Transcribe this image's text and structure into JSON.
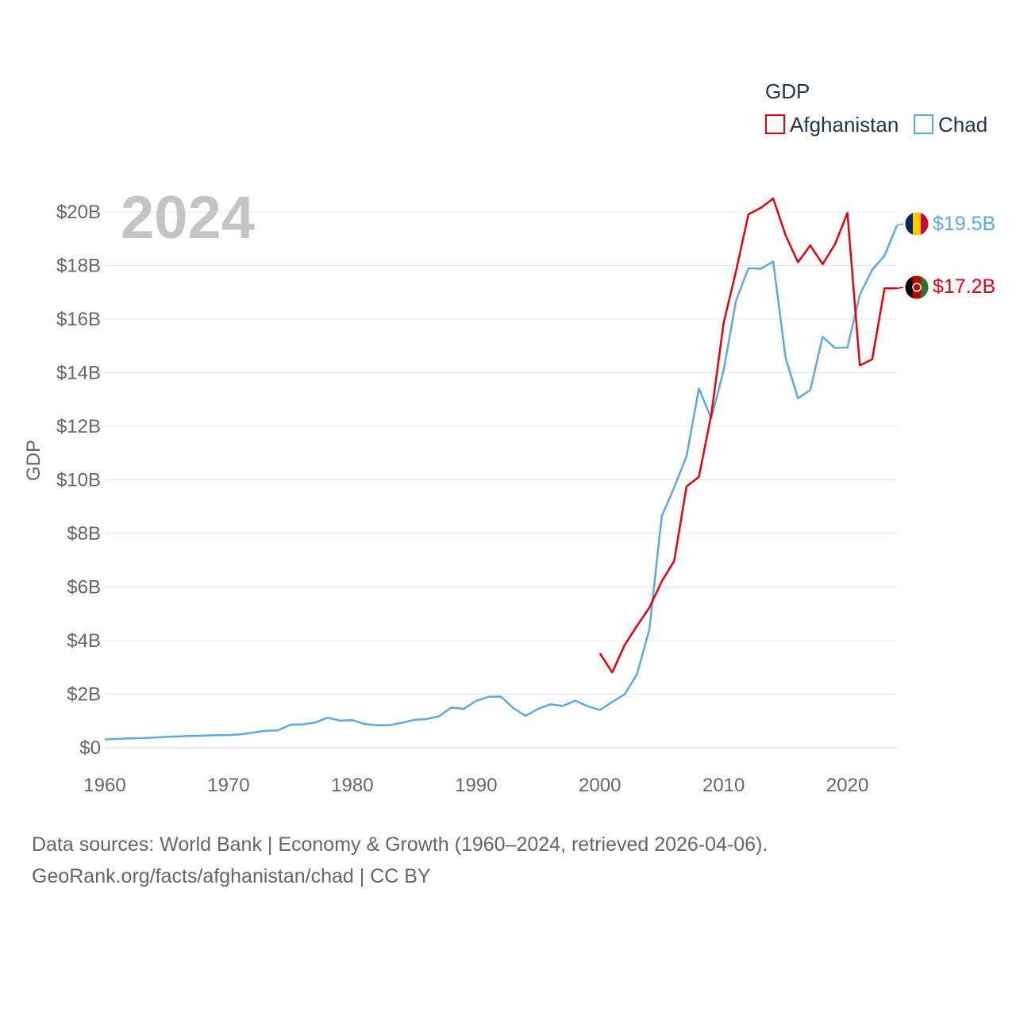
{
  "chart_data": {
    "type": "line",
    "legend_title": "GDP",
    "ylabel": "GDP",
    "xlabel": "",
    "year_label": "2024",
    "xlim": [
      1960,
      2024
    ],
    "ylim": [
      0,
      20
    ],
    "y_unit": "billion USD",
    "x_ticks": [
      1960,
      1970,
      1980,
      1990,
      2000,
      2010,
      2020
    ],
    "x_tick_labels": [
      "1960",
      "1970",
      "1980",
      "1990",
      "2000",
      "2010",
      "2020"
    ],
    "y_ticks": [
      0,
      2,
      4,
      6,
      8,
      10,
      12,
      14,
      16,
      18,
      20
    ],
    "y_tick_labels": [
      "$0",
      "$2B",
      "$4B",
      "$6B",
      "$8B",
      "$10B",
      "$12B",
      "$14B",
      "$16B",
      "$18B",
      "$20B"
    ],
    "series": [
      {
        "name": "Afghanistan",
        "color": "#e8000b",
        "flag": "afghanistan-flag",
        "end_label": "$17.2B",
        "x": [
          2000,
          2001,
          2002,
          2003,
          2004,
          2005,
          2006,
          2007,
          2008,
          2009,
          2010,
          2011,
          2012,
          2013,
          2014,
          2015,
          2016,
          2017,
          2018,
          2019,
          2020,
          2021,
          2022,
          2023,
          2024
        ],
        "values": [
          3.52,
          2.81,
          3.83,
          4.55,
          5.23,
          6.21,
          6.97,
          9.75,
          10.11,
          12.44,
          15.86,
          17.8,
          19.91,
          20.15,
          20.5,
          19.13,
          18.12,
          18.75,
          18.05,
          18.8,
          19.96,
          14.27,
          14.5,
          17.15,
          17.15
        ]
      },
      {
        "name": "Chad",
        "color": "#5da8e6",
        "flag": "chad-flag",
        "end_label": "$19.5B",
        "x": [
          1960,
          1961,
          1962,
          1963,
          1964,
          1965,
          1966,
          1967,
          1968,
          1969,
          1970,
          1971,
          1972,
          1973,
          1974,
          1975,
          1976,
          1977,
          1978,
          1979,
          1980,
          1981,
          1982,
          1983,
          1984,
          1985,
          1986,
          1987,
          1988,
          1989,
          1990,
          1991,
          1992,
          1993,
          1994,
          1995,
          1996,
          1997,
          1998,
          1999,
          2000,
          2001,
          2002,
          2003,
          2004,
          2005,
          2006,
          2007,
          2008,
          2009,
          2010,
          2011,
          2012,
          2013,
          2014,
          2015,
          2016,
          2017,
          2018,
          2019,
          2020,
          2021,
          2022,
          2023,
          2024
        ],
        "values": [
          0.31,
          0.33,
          0.35,
          0.36,
          0.38,
          0.41,
          0.42,
          0.44,
          0.45,
          0.47,
          0.47,
          0.5,
          0.57,
          0.63,
          0.65,
          0.86,
          0.87,
          0.94,
          1.12,
          1.01,
          1.03,
          0.88,
          0.84,
          0.84,
          0.93,
          1.04,
          1.07,
          1.17,
          1.5,
          1.45,
          1.75,
          1.9,
          1.91,
          1.48,
          1.19,
          1.45,
          1.62,
          1.56,
          1.76,
          1.55,
          1.41,
          1.71,
          1.99,
          2.74,
          4.42,
          8.64,
          9.71,
          10.88,
          13.41,
          12.29,
          14.1,
          16.69,
          17.9,
          17.88,
          18.15,
          14.55,
          13.04,
          13.35,
          15.34,
          14.92,
          14.94,
          16.9,
          17.84,
          18.37,
          19.5
        ]
      }
    ]
  },
  "footer": {
    "line1": "Data sources: World Bank | Economy & Growth (1960–2024, retrieved 2026-04-06).",
    "line2": "GeoRank.org/facts/afghanistan/chad | CC BY"
  }
}
